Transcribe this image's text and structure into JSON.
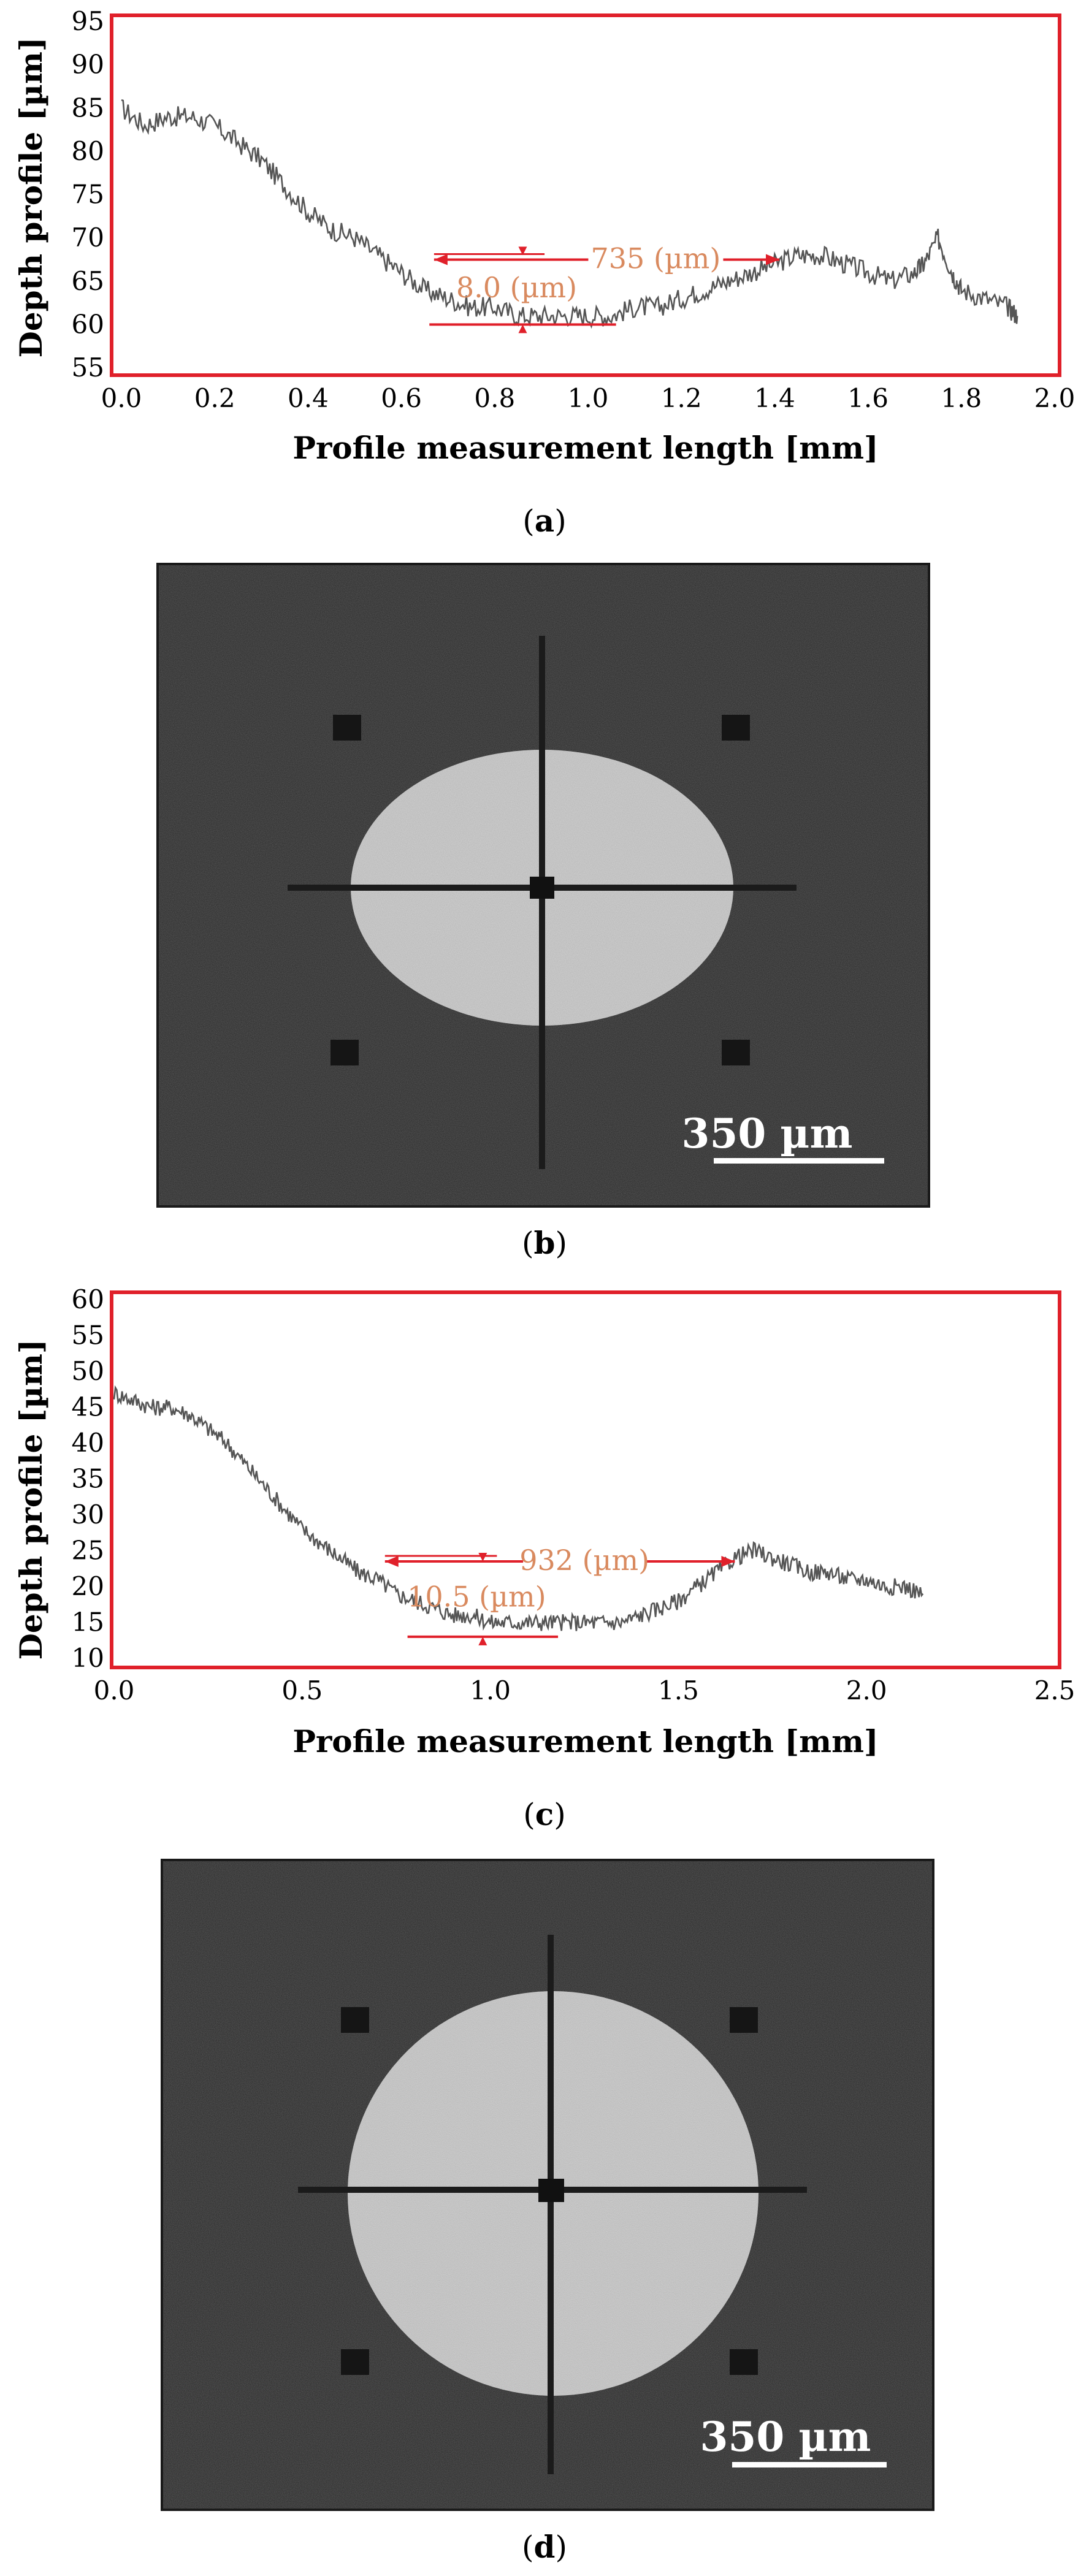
{
  "colors": {
    "frame": "#e0202a",
    "annotation_arrow": "#e0202a",
    "annotation_text": "#d98a5f",
    "profile": "#555555"
  },
  "chart_data": [
    {
      "type": "line",
      "panel": "a",
      "xlabel": "Profile measurement length [mm]",
      "ylabel": "Depth profile [µm]",
      "xlim": [
        0.0,
        2.0
      ],
      "ylim": [
        55,
        95
      ],
      "xticks": [
        "0.0",
        "0.2",
        "0.4",
        "0.6",
        "0.8",
        "1.0",
        "1.2",
        "1.4",
        "1.6",
        "1.8",
        "2.0"
      ],
      "yticks": [
        "55",
        "60",
        "65",
        "70",
        "75",
        "80",
        "85",
        "90",
        "95"
      ],
      "x": [
        0.0,
        0.05,
        0.1,
        0.15,
        0.2,
        0.25,
        0.3,
        0.35,
        0.4,
        0.45,
        0.5,
        0.55,
        0.6,
        0.65,
        0.7,
        0.75,
        0.8,
        0.85,
        0.9,
        0.95,
        1.0,
        1.05,
        1.1,
        1.15,
        1.2,
        1.25,
        1.3,
        1.35,
        1.4,
        1.45,
        1.5,
        1.55,
        1.6,
        1.65,
        1.7,
        1.72,
        1.75,
        1.78,
        1.8,
        1.85,
        1.9,
        1.92
      ],
      "y": [
        85,
        83,
        84,
        84,
        83,
        81,
        79,
        76,
        73,
        71,
        70,
        68,
        66,
        64,
        63,
        62,
        62,
        61,
        61,
        61,
        61,
        61,
        62,
        62,
        63,
        64,
        65,
        66,
        67,
        68,
        68,
        67,
        66,
        65,
        66,
        67,
        70,
        66,
        64,
        63,
        62,
        61
      ],
      "annotations": [
        {
          "label": "735 (µm)",
          "x_from": 0.67,
          "x_to": 1.41,
          "y": 67.5
        },
        {
          "label": "8.0 (µm)",
          "x": 0.86,
          "y_from": 60,
          "y_to": 68
        }
      ]
    },
    {
      "type": "line",
      "panel": "c",
      "xlabel": "Profile measurement length [mm]",
      "ylabel": "Depth profile [µm]",
      "xlim": [
        0.0,
        2.5
      ],
      "ylim": [
        10,
        60
      ],
      "xticks": [
        "0.0",
        "0.5",
        "1.0",
        "1.5",
        "2.0",
        "2.5"
      ],
      "yticks": [
        "10",
        "15",
        "20",
        "25",
        "30",
        "35",
        "40",
        "45",
        "50",
        "55",
        "60"
      ],
      "x": [
        0.0,
        0.05,
        0.1,
        0.15,
        0.2,
        0.25,
        0.3,
        0.35,
        0.4,
        0.45,
        0.5,
        0.55,
        0.6,
        0.65,
        0.7,
        0.75,
        0.8,
        0.85,
        0.9,
        0.95,
        1.0,
        1.05,
        1.1,
        1.15,
        1.2,
        1.25,
        1.3,
        1.35,
        1.4,
        1.45,
        1.5,
        1.55,
        1.6,
        1.65,
        1.7,
        1.75,
        1.8,
        1.85,
        1.9,
        1.95,
        2.0,
        2.05,
        2.1,
        2.15
      ],
      "y": [
        47,
        46,
        45,
        45,
        44,
        42,
        40,
        37,
        34,
        31,
        28,
        26,
        24,
        22,
        21,
        19,
        18,
        17,
        16,
        16,
        15,
        15,
        15,
        15,
        15,
        15,
        15,
        15,
        16,
        17,
        18,
        20,
        22,
        24,
        25,
        24,
        23,
        22,
        22,
        21,
        21,
        20,
        20,
        19
      ],
      "annotations": [
        {
          "label": "932 (µm)",
          "x_from": 0.72,
          "x_to": 1.65,
          "y": 23.5
        },
        {
          "label": "10.5 (µm)",
          "x": 0.98,
          "y_from": 13,
          "y_to": 23.5
        }
      ]
    }
  ],
  "captions": {
    "a": "a",
    "b": "b",
    "c": "c",
    "d": "d"
  },
  "micrographs": {
    "b": {
      "scale_label": "350 µm"
    },
    "d": {
      "scale_label": "350 µm"
    }
  }
}
